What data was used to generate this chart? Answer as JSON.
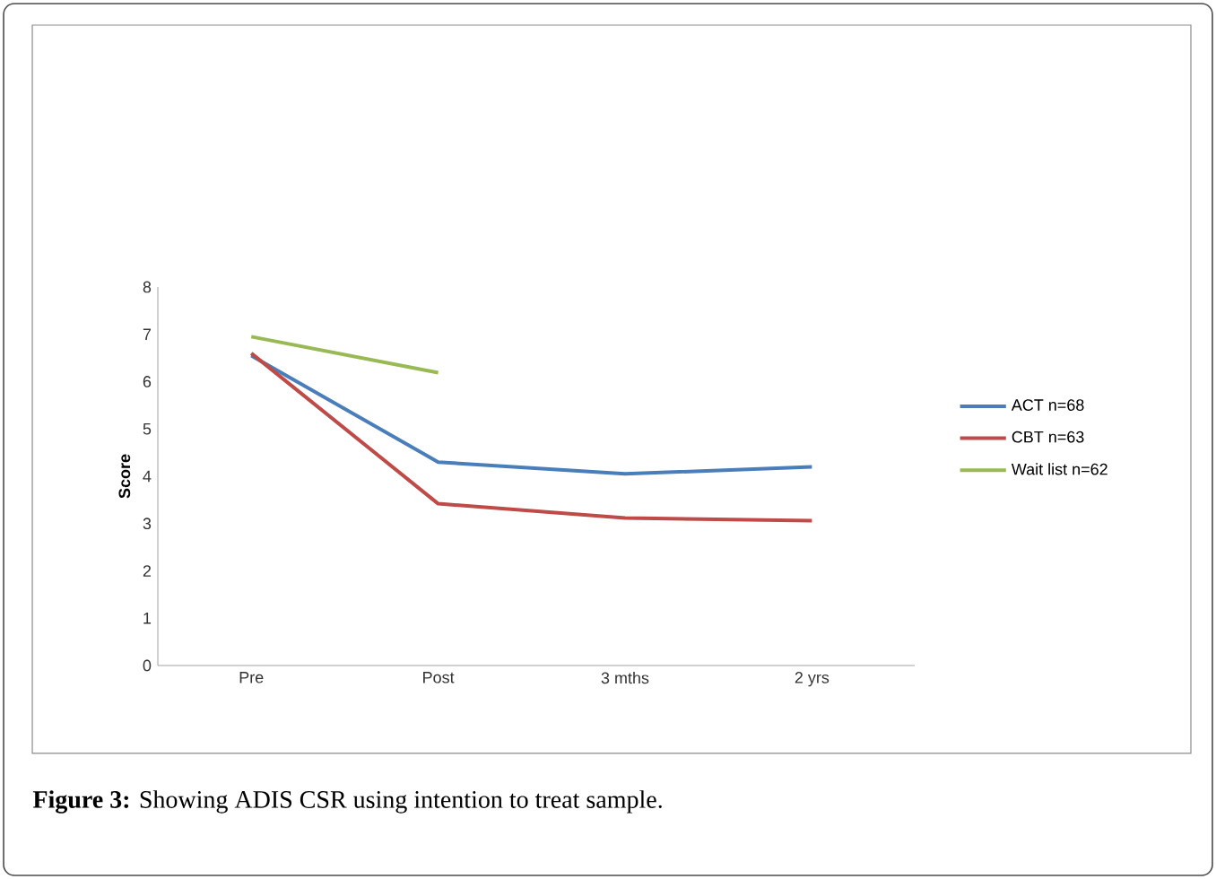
{
  "chart_data": {
    "type": "line",
    "categories": [
      "Pre",
      "Post",
      "3 mths",
      "2 yrs"
    ],
    "ylabel": "Score",
    "ylim": [
      0,
      8
    ],
    "yticks": [
      0,
      1,
      2,
      3,
      4,
      5,
      6,
      7,
      8
    ],
    "series": [
      {
        "name": "ACT n=68",
        "color": "#4a7ebb",
        "values": [
          6.55,
          4.3,
          4.05,
          4.2
        ]
      },
      {
        "name": "CBT n=63",
        "color": "#be4b48",
        "values": [
          6.6,
          3.42,
          3.12,
          3.06
        ]
      },
      {
        "name": "Wait list n=62",
        "color": "#98b954",
        "values": [
          6.95,
          6.19,
          null,
          null
        ]
      }
    ],
    "legend": "right",
    "grid": false,
    "line_style": "solid",
    "annotations": [
      "**Figure 3:** Showing ADIS CSR using intention to treat sample."
    ]
  }
}
